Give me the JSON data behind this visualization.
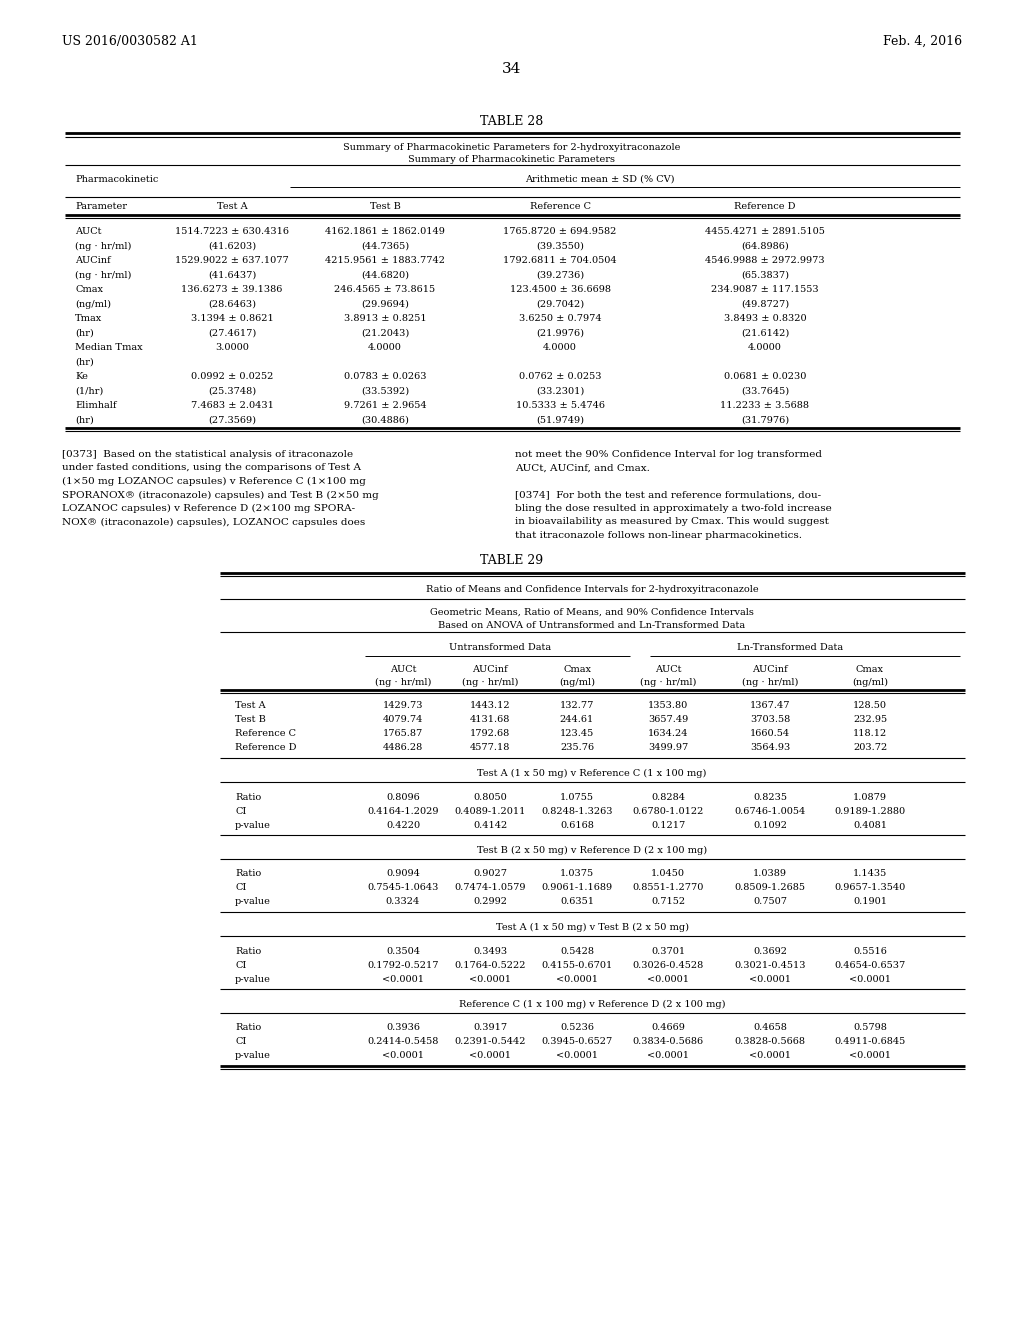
{
  "header_left": "US 2016/0030582 A1",
  "header_right": "Feb. 4, 2016",
  "page_number": "34",
  "table28_title": "TABLE 28",
  "table28_subtitle1": "Summary of Pharmacokinetic Parameters for 2-hydroxyitraconazole",
  "table28_subtitle2": "Summary of Pharmacokinetic Parameters",
  "table28_subheader": "Arithmetic mean ± SD (% CV)",
  "table28_rows": [
    [
      "AUCt",
      "1514.7223 ± 630.4316",
      "4162.1861 ± 1862.0149",
      "1765.8720 ± 694.9582",
      "4455.4271 ± 2891.5105"
    ],
    [
      "(ng · hr/ml)",
      "(41.6203)",
      "(44.7365)",
      "(39.3550)",
      "(64.8986)"
    ],
    [
      "AUCinf",
      "1529.9022 ± 637.1077",
      "4215.9561 ± 1883.7742",
      "1792.6811 ± 704.0504",
      "4546.9988 ± 2972.9973"
    ],
    [
      "(ng · hr/ml)",
      "(41.6437)",
      "(44.6820)",
      "(39.2736)",
      "(65.3837)"
    ],
    [
      "Cmax",
      "136.6273 ± 39.1386",
      "246.4565 ± 73.8615",
      "123.4500 ± 36.6698",
      "234.9087 ± 117.1553"
    ],
    [
      "(ng/ml)",
      "(28.6463)",
      "(29.9694)",
      "(29.7042)",
      "(49.8727)"
    ],
    [
      "Tmax",
      "3.1394 ± 0.8621",
      "3.8913 ± 0.8251",
      "3.6250 ± 0.7974",
      "3.8493 ± 0.8320"
    ],
    [
      "(hr)",
      "(27.4617)",
      "(21.2043)",
      "(21.9976)",
      "(21.6142)"
    ],
    [
      "Median Tmax",
      "3.0000",
      "4.0000",
      "4.0000",
      "4.0000"
    ],
    [
      "(hr)",
      "",
      "",
      "",
      ""
    ],
    [
      "Ke",
      "0.0992 ± 0.0252",
      "0.0783 ± 0.0263",
      "0.0762 ± 0.0253",
      "0.0681 ± 0.0230"
    ],
    [
      "(1/hr)",
      "(25.3748)",
      "(33.5392)",
      "(33.2301)",
      "(33.7645)"
    ],
    [
      "Elimhalf",
      "7.4683 ± 2.0431",
      "9.7261 ± 2.9654",
      "10.5333 ± 5.4746",
      "11.2233 ± 3.5688"
    ],
    [
      "(hr)",
      "(27.3569)",
      "(30.4886)",
      "(51.9749)",
      "(31.7976)"
    ]
  ],
  "para_left": [
    "[0373]  Based on the statistical analysis of itraconazole",
    "under fasted conditions, using the comparisons of Test A",
    "(1×50 mg LOZANOC capsules) v Reference C (1×100 mg",
    "SPORANOX® (itraconazole) capsules) and Test B (2×50 mg",
    "LOZANOC capsules) v Reference D (2×100 mg SPORA-",
    "NOX® (itraconazole) capsules), LOZANOC capsules does"
  ],
  "para_right": [
    "not meet the 90% Confidence Interval for log transformed",
    "AUCt, AUCinf, and Cmax.",
    "",
    "[0374]  For both the test and reference formulations, dou-",
    "bling the dose resulted in approximately a two-fold increase",
    "in bioavailability as measured by Cmax. This would suggest",
    "that itraconazole follows non-linear pharmacokinetics."
  ],
  "table29_title": "TABLE 29",
  "table29_header1": "Ratio of Means and Confidence Intervals for 2-hydroxyitraconazole",
  "table29_header2": "Geometric Means, Ratio of Means, and 90% Confidence Intervals",
  "table29_header3": "Based on ANOVA of Untransformed and Ln-Transformed Data",
  "table29_means_rows": [
    [
      "Test A",
      "1429.73",
      "1443.12",
      "132.77",
      "1353.80",
      "1367.47",
      "128.50"
    ],
    [
      "Test B",
      "4079.74",
      "4131.68",
      "244.61",
      "3657.49",
      "3703.58",
      "232.95"
    ],
    [
      "Reference C",
      "1765.87",
      "1792.68",
      "123.45",
      "1634.24",
      "1660.54",
      "118.12"
    ],
    [
      "Reference D",
      "4486.28",
      "4577.18",
      "235.76",
      "3499.97",
      "3564.93",
      "203.72"
    ]
  ],
  "table29_section1_header": "Test A (1 x 50 mg) v Reference C (1 x 100 mg)",
  "table29_section1": [
    [
      "Ratio",
      "0.8096",
      "0.8050",
      "1.0755",
      "0.8284",
      "0.8235",
      "1.0879"
    ],
    [
      "CI",
      "0.4164-1.2029",
      "0.4089-1.2011",
      "0.8248-1.3263",
      "0.6780-1.0122",
      "0.6746-1.0054",
      "0.9189-1.2880"
    ],
    [
      "p-value",
      "0.4220",
      "0.4142",
      "0.6168",
      "0.1217",
      "0.1092",
      "0.4081"
    ]
  ],
  "table29_section2_header": "Test B (2 x 50 mg) v Reference D (2 x 100 mg)",
  "table29_section2": [
    [
      "Ratio",
      "0.9094",
      "0.9027",
      "1.0375",
      "1.0450",
      "1.0389",
      "1.1435"
    ],
    [
      "CI",
      "0.7545-1.0643",
      "0.7474-1.0579",
      "0.9061-1.1689",
      "0.8551-1.2770",
      "0.8509-1.2685",
      "0.9657-1.3540"
    ],
    [
      "p-value",
      "0.3324",
      "0.2992",
      "0.6351",
      "0.7152",
      "0.7507",
      "0.1901"
    ]
  ],
  "table29_section3_header": "Test A (1 x 50 mg) v Test B (2 x 50 mg)",
  "table29_section3": [
    [
      "Ratio",
      "0.3504",
      "0.3493",
      "0.5428",
      "0.3701",
      "0.3692",
      "0.5516"
    ],
    [
      "CI",
      "0.1792-0.5217",
      "0.1764-0.5222",
      "0.4155-0.6701",
      "0.3026-0.4528",
      "0.3021-0.4513",
      "0.4654-0.6537"
    ],
    [
      "p-value",
      "<0.0001",
      "<0.0001",
      "<0.0001",
      "<0.0001",
      "<0.0001",
      "<0.0001"
    ]
  ],
  "table29_section4_header": "Reference C (1 x 100 mg) v Reference D (2 x 100 mg)",
  "table29_section4": [
    [
      "Ratio",
      "0.3936",
      "0.3917",
      "0.5236",
      "0.4669",
      "0.4658",
      "0.5798"
    ],
    [
      "CI",
      "0.2414-0.5458",
      "0.2391-0.5442",
      "0.3945-0.6527",
      "0.3834-0.5686",
      "0.3828-0.5668",
      "0.4911-0.6845"
    ],
    [
      "p-value",
      "<0.0001",
      "<0.0001",
      "<0.0001",
      "<0.0001",
      "<0.0001",
      "<0.0001"
    ]
  ]
}
